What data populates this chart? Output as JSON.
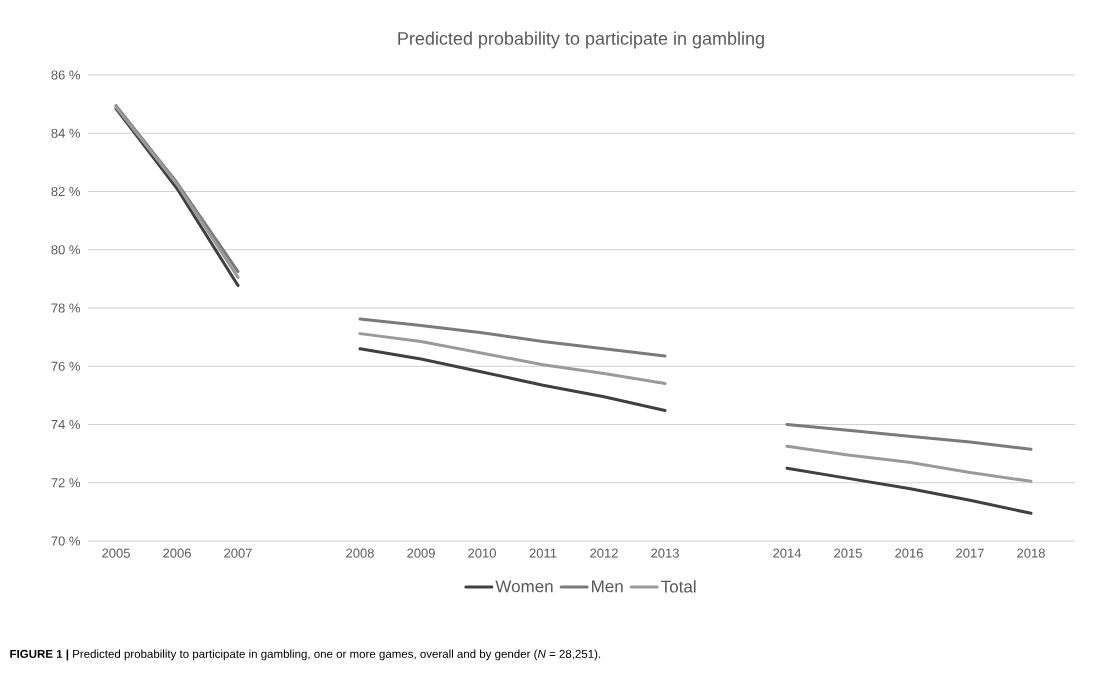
{
  "chart_data": {
    "type": "line",
    "title": "Predicted probability to participate in gambling",
    "categories": [
      "2005",
      "2006",
      "2007",
      null,
      "2008",
      "2009",
      "2010",
      "2011",
      "2012",
      "2013",
      null,
      "2014",
      "2015",
      "2016",
      "2017",
      "2018"
    ],
    "series": [
      {
        "name": "Women",
        "color": "#404040",
        "values": [
          84.85,
          82.1,
          78.77,
          null,
          76.6,
          76.25,
          75.8,
          75.35,
          74.95,
          74.48,
          null,
          72.5,
          72.15,
          71.8,
          71.4,
          70.95
        ]
      },
      {
        "name": "Men",
        "color": "#7a7a7a",
        "values": [
          84.95,
          82.3,
          79.25,
          null,
          77.62,
          77.4,
          77.15,
          76.85,
          76.6,
          76.35,
          null,
          74.0,
          73.8,
          73.6,
          73.4,
          73.15
        ]
      },
      {
        "name": "Total",
        "color": "#9a9a9a",
        "values": [
          84.9,
          82.25,
          79.05,
          null,
          77.12,
          76.85,
          76.45,
          76.05,
          75.75,
          75.41,
          null,
          73.25,
          72.95,
          72.7,
          72.35,
          72.05
        ]
      }
    ],
    "ylim": [
      70,
      86
    ],
    "yticks": [
      {
        "value": 70,
        "label": "70 %"
      },
      {
        "value": 72,
        "label": "72 %"
      },
      {
        "value": 74,
        "label": "74 %"
      },
      {
        "value": 76,
        "label": "76 %"
      },
      {
        "value": 78,
        "label": "78 %"
      },
      {
        "value": 80,
        "label": "80 %"
      },
      {
        "value": 82,
        "label": "82 %"
      },
      {
        "value": 84,
        "label": "84 %"
      },
      {
        "value": 86,
        "label": "86 %"
      }
    ],
    "grid": "y",
    "legend": "bottom",
    "marker": "none",
    "line_style": "solid",
    "annotations": [
      "**FIGURE 1 |** Predicted probability to participate in gambling, one or more games, overall and by gender (*N* = 28,251)."
    ]
  }
}
